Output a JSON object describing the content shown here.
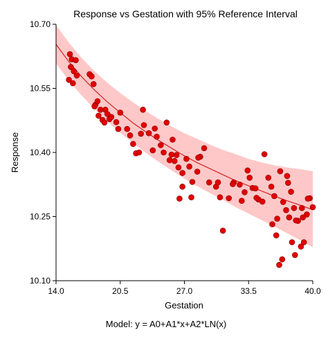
{
  "chart_data": {
    "type": "scatter",
    "title": "Response vs Gestation with 95% Reference Interval",
    "xlabel": "Gestation",
    "ylabel": "Response",
    "footnote": "Model:  y = A0+A1*x+A2*LN(x)",
    "xlim": [
      14.0,
      40.0
    ],
    "ylim": [
      10.1,
      10.7
    ],
    "xticks": [
      "14.0",
      "20.5",
      "27.0",
      "33.5",
      "40.0"
    ],
    "yticks": [
      "10.10",
      "10.25",
      "10.40",
      "10.55",
      "10.70"
    ],
    "grid": false,
    "colors": {
      "points": "#e00000",
      "fit_line": "#d42020",
      "band": "#ffc8c8"
    },
    "fit": {
      "x": [
        14.0,
        15.3,
        16.6,
        17.9,
        19.2,
        20.5,
        21.8,
        23.1,
        24.4,
        25.7,
        27.0,
        28.3,
        29.6,
        30.9,
        32.2,
        33.5,
        34.8,
        36.1,
        37.4,
        38.7,
        40.0
      ],
      "y": [
        10.653,
        10.612,
        10.577,
        10.546,
        10.518,
        10.493,
        10.469,
        10.448,
        10.428,
        10.41,
        10.392,
        10.376,
        10.362,
        10.348,
        10.334,
        10.322,
        10.31,
        10.298,
        10.287,
        10.277,
        10.266
      ],
      "upper": [
        10.698,
        10.657,
        10.621,
        10.59,
        10.563,
        10.539,
        10.517,
        10.497,
        10.478,
        10.461,
        10.445,
        10.432,
        10.418,
        10.406,
        10.396,
        10.385,
        10.377,
        10.37,
        10.365,
        10.361,
        10.356
      ],
      "lower": [
        10.608,
        10.568,
        10.533,
        10.502,
        10.473,
        10.446,
        10.422,
        10.399,
        10.378,
        10.358,
        10.339,
        10.321,
        10.305,
        10.289,
        10.272,
        10.257,
        10.242,
        10.227,
        10.211,
        10.195,
        10.178
      ]
    },
    "points": [
      [
        15.4,
        10.63
      ],
      [
        15.6,
        10.618
      ],
      [
        15.5,
        10.6
      ],
      [
        15.8,
        10.59
      ],
      [
        16.0,
        10.616
      ],
      [
        15.3,
        10.57
      ],
      [
        15.7,
        10.562
      ],
      [
        16.1,
        10.58
      ],
      [
        17.4,
        10.583
      ],
      [
        17.8,
        10.56
      ],
      [
        17.6,
        10.578
      ],
      [
        18.0,
        10.512
      ],
      [
        18.2,
        10.52
      ],
      [
        18.5,
        10.5
      ],
      [
        17.9,
        10.508
      ],
      [
        18.3,
        10.486
      ],
      [
        18.7,
        10.476
      ],
      [
        19.0,
        10.5
      ],
      [
        19.2,
        10.49
      ],
      [
        19.4,
        10.478
      ],
      [
        19.6,
        10.483
      ],
      [
        18.9,
        10.47
      ],
      [
        20.1,
        10.471
      ],
      [
        20.5,
        10.493
      ],
      [
        20.3,
        10.455
      ],
      [
        21.2,
        10.455
      ],
      [
        21.5,
        10.44
      ],
      [
        21.8,
        10.42
      ],
      [
        22.1,
        10.398
      ],
      [
        22.4,
        10.4
      ],
      [
        22.6,
        10.444
      ],
      [
        22.9,
        10.464
      ],
      [
        23.4,
        10.445
      ],
      [
        24.0,
        10.456
      ],
      [
        24.2,
        10.437
      ],
      [
        24.6,
        10.417
      ],
      [
        24.9,
        10.4
      ],
      [
        25.2,
        10.47
      ],
      [
        25.5,
        10.382
      ],
      [
        25.8,
        10.43
      ],
      [
        26.0,
        10.38
      ],
      [
        26.4,
        10.365
      ],
      [
        26.8,
        10.352
      ],
      [
        27.2,
        10.385
      ],
      [
        27.5,
        10.367
      ],
      [
        27.8,
        10.331
      ],
      [
        28.3,
        10.355
      ],
      [
        28.6,
        10.39
      ],
      [
        29.0,
        10.41
      ],
      [
        25.7,
        10.395
      ],
      [
        26.2,
        10.394
      ],
      [
        23.8,
        10.405
      ],
      [
        22.8,
        10.5
      ],
      [
        26.8,
        10.32
      ],
      [
        26.5,
        10.292
      ],
      [
        27.7,
        10.295
      ],
      [
        28.4,
        10.388
      ],
      [
        29.5,
        10.33
      ],
      [
        30.2,
        10.32
      ],
      [
        30.6,
        10.295
      ],
      [
        30.9,
        10.217
      ],
      [
        31.5,
        10.293
      ],
      [
        32.0,
        10.33
      ],
      [
        32.6,
        10.325
      ],
      [
        33.1,
        10.307
      ],
      [
        33.6,
        10.341
      ],
      [
        33.9,
        10.317
      ],
      [
        34.2,
        10.316
      ],
      [
        34.5,
        10.29
      ],
      [
        34.9,
        10.285
      ],
      [
        35.1,
        10.396
      ],
      [
        35.5,
        10.341
      ],
      [
        35.8,
        10.32
      ],
      [
        36.1,
        10.298
      ],
      [
        36.4,
        10.245
      ],
      [
        36.7,
        10.356
      ],
      [
        37.0,
        10.284
      ],
      [
        37.3,
        10.265
      ],
      [
        37.6,
        10.248
      ],
      [
        37.9,
        10.19
      ],
      [
        38.2,
        10.16
      ],
      [
        38.5,
        10.24
      ],
      [
        38.8,
        10.18
      ],
      [
        39.1,
        10.19
      ],
      [
        39.4,
        10.255
      ],
      [
        39.7,
        10.293
      ],
      [
        40.0,
        10.272
      ],
      [
        36.9,
        10.15
      ],
      [
        37.8,
        10.308
      ],
      [
        38.9,
        10.27
      ],
      [
        35.9,
        10.232
      ],
      [
        36.3,
        10.206
      ],
      [
        36.6,
        10.137
      ],
      [
        39.0,
        10.248
      ],
      [
        34.3,
        10.294
      ],
      [
        33.4,
        10.358
      ],
      [
        32.8,
        10.287
      ],
      [
        38.3,
        10.241
      ],
      [
        39.5,
        10.292
      ],
      [
        37.4,
        10.345
      ],
      [
        37.5,
        10.329
      ],
      [
        38.1,
        10.27
      ],
      [
        30.4,
        10.33
      ],
      [
        31.9,
        10.326
      ]
    ]
  }
}
